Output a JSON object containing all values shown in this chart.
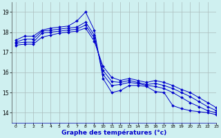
{
  "title": "Graphe des températures (°c)",
  "bg_color": "#cff0f0",
  "grid_color": "#aabbbb",
  "line_color": "#0000cc",
  "xlim": [
    -0.5,
    23
  ],
  "ylim": [
    13.5,
    19.5
  ],
  "yticks": [
    14,
    15,
    16,
    17,
    18,
    19
  ],
  "xticks": [
    0,
    1,
    2,
    3,
    4,
    5,
    6,
    7,
    8,
    9,
    10,
    11,
    12,
    13,
    14,
    15,
    16,
    17,
    18,
    19,
    20,
    21,
    22,
    23
  ],
  "series": [
    [
      17.6,
      17.8,
      17.8,
      18.1,
      18.2,
      18.25,
      18.3,
      18.55,
      19.0,
      18.1,
      15.7,
      15.0,
      15.1,
      15.35,
      15.35,
      15.3,
      15.05,
      15.0,
      14.35,
      14.2,
      14.1,
      14.05,
      14.0,
      13.9
    ],
    [
      17.5,
      17.65,
      17.65,
      18.05,
      18.1,
      18.15,
      18.2,
      18.25,
      18.5,
      17.85,
      15.9,
      15.35,
      15.4,
      15.5,
      15.45,
      15.35,
      15.3,
      15.2,
      15.0,
      14.75,
      14.5,
      14.3,
      14.1,
      14.0
    ],
    [
      17.45,
      17.5,
      17.5,
      17.95,
      18.0,
      18.05,
      18.1,
      18.15,
      18.35,
      17.7,
      16.1,
      15.55,
      15.5,
      15.6,
      15.5,
      15.4,
      15.45,
      15.35,
      15.2,
      15.0,
      14.8,
      14.55,
      14.3,
      14.1
    ],
    [
      17.35,
      17.4,
      17.4,
      17.75,
      17.85,
      17.95,
      18.0,
      18.05,
      18.2,
      17.55,
      16.3,
      15.75,
      15.6,
      15.7,
      15.6,
      15.5,
      15.6,
      15.5,
      15.35,
      15.15,
      15.0,
      14.75,
      14.5,
      14.25
    ]
  ]
}
